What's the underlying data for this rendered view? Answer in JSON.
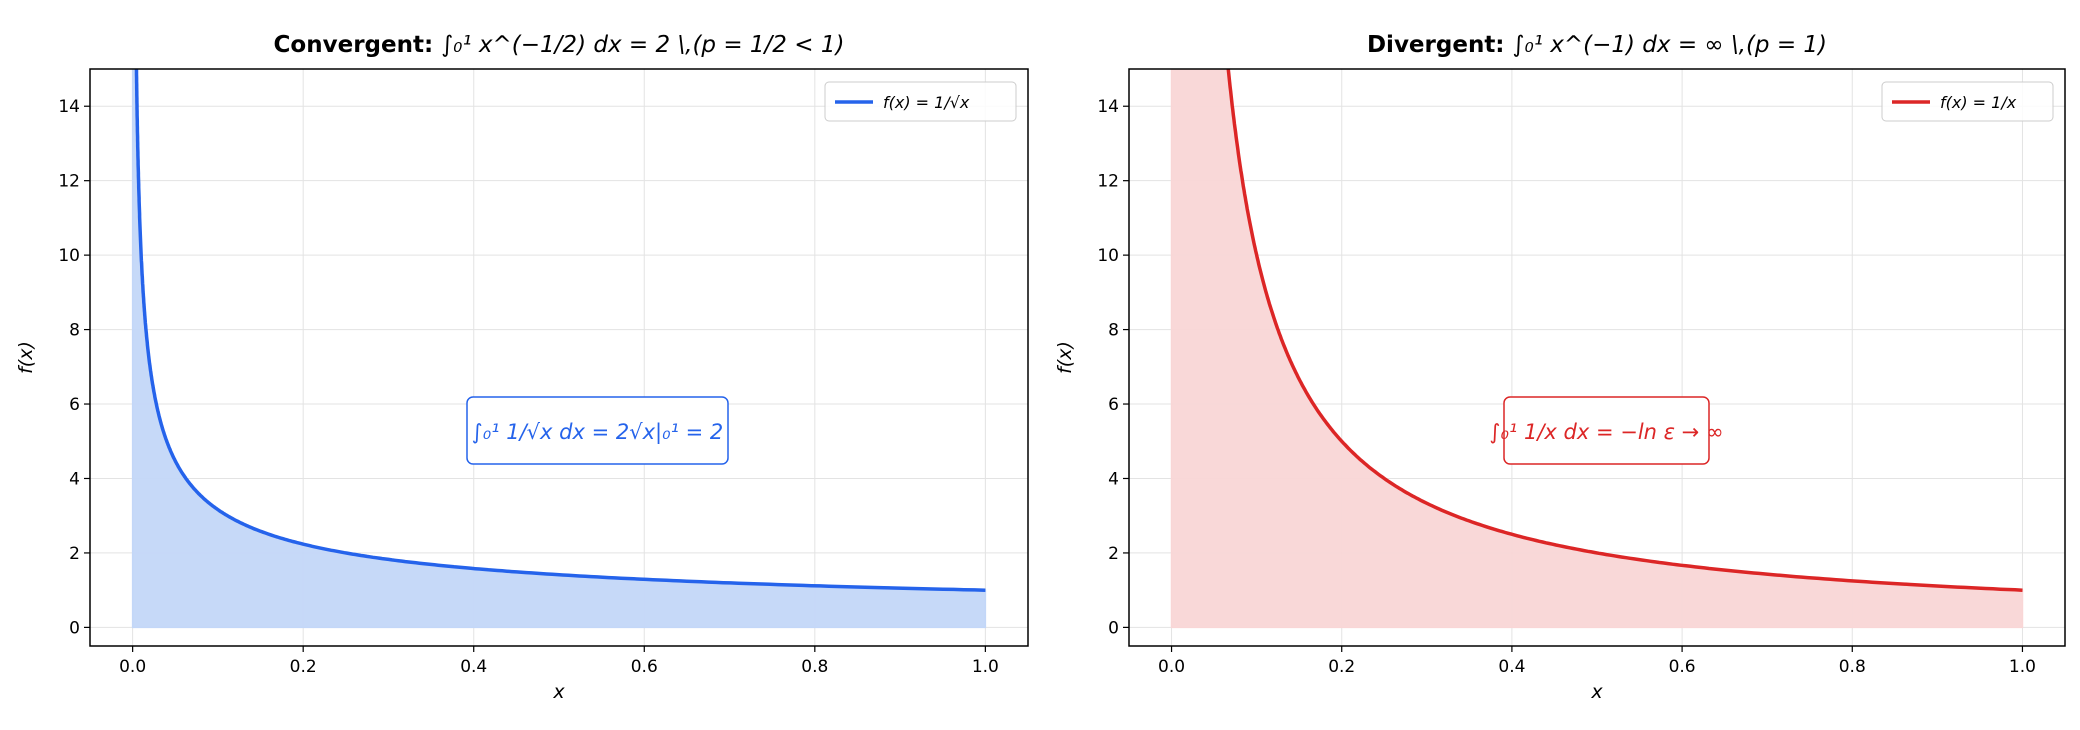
{
  "chart_data": [
    {
      "type": "area",
      "title_bold": "Convergent:",
      "title_math": "∫₀¹ x^(−1/2) dx = 2 \\,(p = 1/2 < 1)",
      "title_parts": {
        "integral": "∫",
        "lower": "0",
        "upper": "1",
        "base": "x",
        "exp": "−1/2",
        "rest": " dx = 2 \\,(p = 1/2 < 1)"
      },
      "xlabel": "x",
      "ylabel": "f(x)",
      "xlim": [
        -0.05,
        1.05
      ],
      "ylim": [
        -0.5,
        15
      ],
      "xticks": [
        "0.0",
        "0.2",
        "0.4",
        "0.6",
        "0.8",
        "1.0"
      ],
      "yticks": [
        "0",
        "2",
        "4",
        "6",
        "8",
        "10",
        "12",
        "14"
      ],
      "grid": true,
      "legend": {
        "position": "top-right",
        "entries": [
          "f(x) = 1/√x"
        ]
      },
      "function": "1/sqrt(x)",
      "x_domain": [
        0,
        1
      ],
      "series": [
        {
          "name": "f(x) = 1/√x",
          "x": [
            0.0044,
            0.01,
            0.02,
            0.05,
            0.1,
            0.2,
            0.4,
            0.6,
            0.8,
            1.0
          ],
          "y": [
            15,
            10,
            7.07,
            4.47,
            3.16,
            2.24,
            1.58,
            1.29,
            1.12,
            1.0
          ]
        }
      ],
      "annotation": "∫₀¹ 1/√x dx = 2√x|₀¹ = 2",
      "line_color": "#2563eb",
      "fill_color": "#c3d7f8"
    },
    {
      "type": "area",
      "title_bold": "Divergent:",
      "title_math": "∫₀¹ x^(−1) dx = ∞ \\,(p = 1)",
      "title_parts": {
        "integral": "∫",
        "lower": "0",
        "upper": "1",
        "base": "x",
        "exp": "−1",
        "rest": " dx = ∞ \\,(p = 1)"
      },
      "xlabel": "x",
      "ylabel": "f(x)",
      "xlim": [
        -0.05,
        1.05
      ],
      "ylim": [
        -0.5,
        15
      ],
      "xticks": [
        "0.0",
        "0.2",
        "0.4",
        "0.6",
        "0.8",
        "1.0"
      ],
      "yticks": [
        "0",
        "2",
        "4",
        "6",
        "8",
        "10",
        "12",
        "14"
      ],
      "grid": true,
      "legend": {
        "position": "top-right",
        "entries": [
          "f(x) = 1/x"
        ]
      },
      "function": "1/x",
      "x_domain": [
        0,
        1
      ],
      "series": [
        {
          "name": "f(x) = 1/x",
          "x": [
            0.0667,
            0.1,
            0.2,
            0.4,
            0.6,
            0.8,
            1.0
          ],
          "y": [
            15,
            10,
            5,
            2.5,
            1.67,
            1.25,
            1.0
          ]
        }
      ],
      "annotation": "∫₀¹ 1/x dx = −ln ε → ∞",
      "line_color": "#dc2626",
      "fill_color": "#f9d6d6"
    }
  ]
}
